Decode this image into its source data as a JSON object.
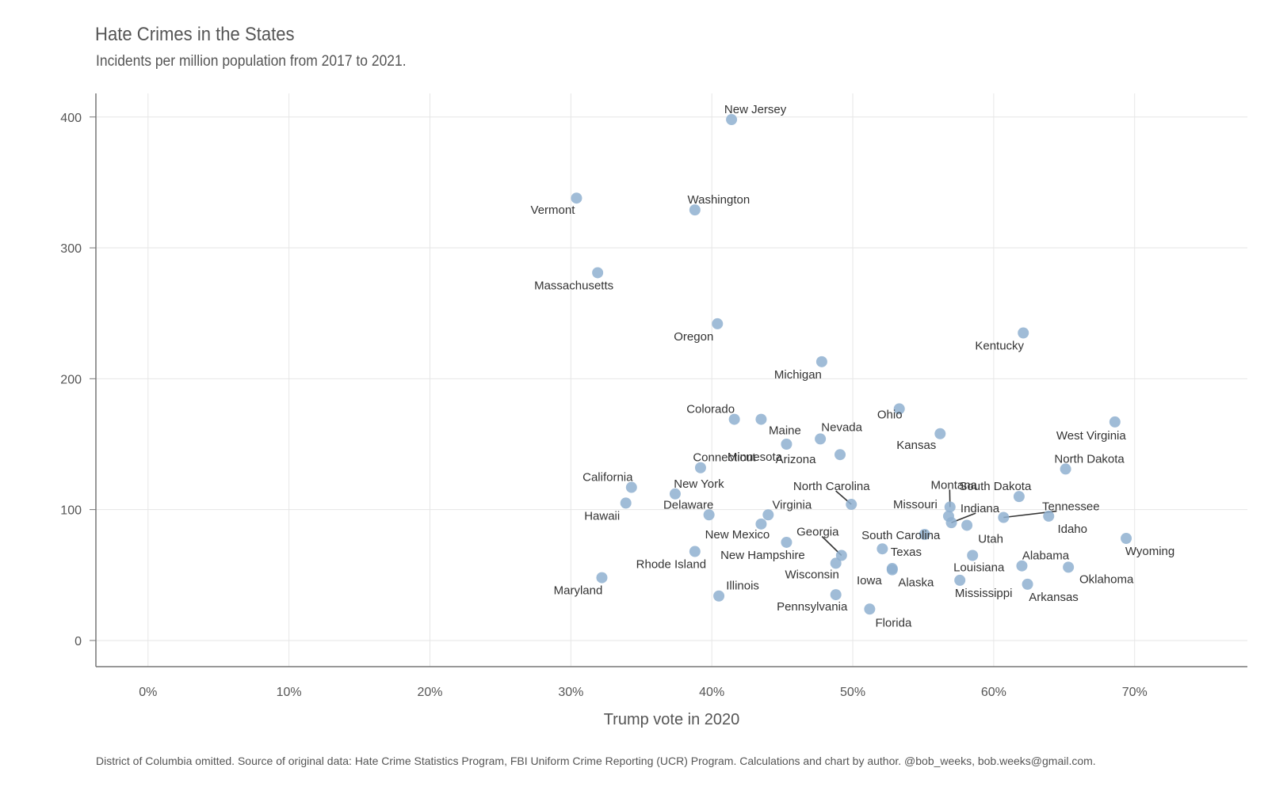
{
  "chart_data": {
    "type": "scatter",
    "title": "Hate Crimes in the States",
    "subtitle": "Incidents per million population from 2017 to 2021.",
    "xlabel": "Trump vote in 2020",
    "ylabel": "",
    "xlim": [
      -0.037,
      0.78
    ],
    "ylim": [
      -20,
      418
    ],
    "x_ticks": [
      0,
      0.1,
      0.2,
      0.3,
      0.4,
      0.5,
      0.6,
      0.7
    ],
    "x_tick_labels": [
      "0%",
      "10%",
      "20%",
      "30%",
      "40%",
      "50%",
      "60%",
      "70%"
    ],
    "y_ticks": [
      0,
      100,
      200,
      300,
      400
    ],
    "y_tick_labels": [
      "0",
      "100",
      "200",
      "300",
      "400"
    ],
    "grid": true,
    "point_color": "#8fb0d0",
    "caption": "District of Columbia omitted. Source of original data: Hate Crime Statistics Program, FBI Uniform Crime Reporting (UCR) Program. Calculations and chart by author. @bob_weeks, bob.weeks@gmail.com.",
    "points": [
      {
        "state": "New Jersey",
        "x": 0.414,
        "y": 398
      },
      {
        "state": "Vermont",
        "x": 0.304,
        "y": 338
      },
      {
        "state": "Washington",
        "x": 0.388,
        "y": 329
      },
      {
        "state": "Massachusetts",
        "x": 0.319,
        "y": 281
      },
      {
        "state": "Oregon",
        "x": 0.404,
        "y": 242
      },
      {
        "state": "Kentucky",
        "x": 0.621,
        "y": 235
      },
      {
        "state": "Michigan",
        "x": 0.478,
        "y": 213
      },
      {
        "state": "Ohio",
        "x": 0.533,
        "y": 177
      },
      {
        "state": "Colorado",
        "x": 0.416,
        "y": 169
      },
      {
        "state": "Maine",
        "x": 0.435,
        "y": 169
      },
      {
        "state": "West Virginia",
        "x": 0.686,
        "y": 167
      },
      {
        "state": "Kansas",
        "x": 0.562,
        "y": 158
      },
      {
        "state": "Nevada",
        "x": 0.477,
        "y": 154
      },
      {
        "state": "Minnesota",
        "x": 0.453,
        "y": 150
      },
      {
        "state": "Arizona",
        "x": 0.491,
        "y": 142
      },
      {
        "state": "Connecticut",
        "x": 0.392,
        "y": 132
      },
      {
        "state": "North Dakota",
        "x": 0.651,
        "y": 131
      },
      {
        "state": "California",
        "x": 0.343,
        "y": 117
      },
      {
        "state": "New York",
        "x": 0.374,
        "y": 112
      },
      {
        "state": "South Dakota",
        "x": 0.618,
        "y": 110
      },
      {
        "state": "Hawaii",
        "x": 0.339,
        "y": 105
      },
      {
        "state": "North Carolina",
        "x": 0.499,
        "y": 104
      },
      {
        "state": "Montana",
        "x": 0.569,
        "y": 102
      },
      {
        "state": "Delaware",
        "x": 0.398,
        "y": 96
      },
      {
        "state": "Virginia",
        "x": 0.44,
        "y": 96
      },
      {
        "state": "Missouri",
        "x": 0.568,
        "y": 95
      },
      {
        "state": "Tennessee",
        "x": 0.607,
        "y": 94
      },
      {
        "state": "Idaho",
        "x": 0.639,
        "y": 95
      },
      {
        "state": "Indiana",
        "x": 0.57,
        "y": 90
      },
      {
        "state": "South Carolina",
        "x": 0.551,
        "y": 81
      },
      {
        "state": "Utah",
        "x": 0.581,
        "y": 88
      },
      {
        "state": "New Mexico",
        "x": 0.435,
        "y": 89
      },
      {
        "state": "Wyoming",
        "x": 0.694,
        "y": 78
      },
      {
        "state": "New Hampshire",
        "x": 0.453,
        "y": 75
      },
      {
        "state": "Georgia",
        "x": 0.492,
        "y": 65
      },
      {
        "state": "Texas",
        "x": 0.521,
        "y": 70
      },
      {
        "state": "Rhode Island",
        "x": 0.388,
        "y": 68
      },
      {
        "state": "Louisiana",
        "x": 0.585,
        "y": 65
      },
      {
        "state": "Wisconsin",
        "x": 0.488,
        "y": 59
      },
      {
        "state": "Alabama",
        "x": 0.62,
        "y": 57
      },
      {
        "state": "Oklahoma",
        "x": 0.653,
        "y": 56
      },
      {
        "state": "Iowa",
        "x": 0.528,
        "y": 55
      },
      {
        "state": "Alaska",
        "x": 0.528,
        "y": 54
      },
      {
        "state": "Maryland",
        "x": 0.322,
        "y": 48
      },
      {
        "state": "Mississippi",
        "x": 0.576,
        "y": 46
      },
      {
        "state": "Arkansas",
        "x": 0.624,
        "y": 43
      },
      {
        "state": "Illinois",
        "x": 0.405,
        "y": 34
      },
      {
        "state": "Pennsylvania",
        "x": 0.488,
        "y": 35
      },
      {
        "state": "Florida",
        "x": 0.512,
        "y": 24
      }
    ]
  }
}
